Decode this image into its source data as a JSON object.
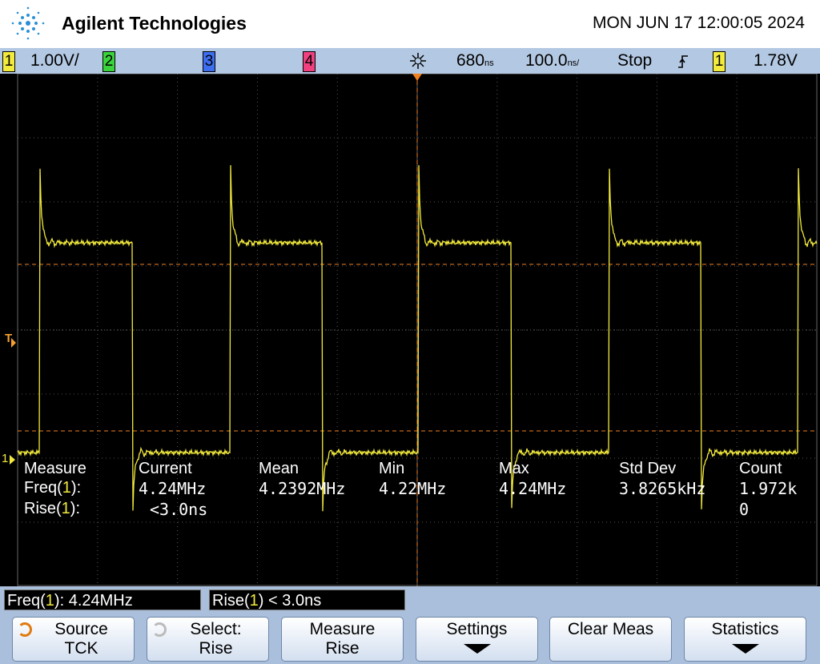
{
  "header": {
    "brand": "Agilent Technologies",
    "datetime": "MON JUN 17 12:00:05 2024"
  },
  "status_bar": {
    "channels": [
      {
        "number": "1",
        "scale": "1.00V/"
      },
      {
        "number": "2"
      },
      {
        "number": "3"
      },
      {
        "number": "4"
      }
    ],
    "delay": {
      "value": "680",
      "unit": "ns"
    },
    "timebase": {
      "value": "100.0",
      "unit": "ns/"
    },
    "run_state": "Stop",
    "trigger_source": "1",
    "trigger_level": "1.78V"
  },
  "screen": {
    "trigger_marker": "T",
    "ground_marker": "1"
  },
  "measurements": {
    "headers": [
      "Measure",
      "Current",
      "Mean",
      "Min",
      "Max",
      "Std Dev",
      "Count"
    ],
    "rows": [
      {
        "label": [
          "Freq(",
          "1",
          "):"
        ],
        "current": "4.24MHz",
        "mean": "4.2392MHz",
        "min": "4.22MHz",
        "max": "4.24MHz",
        "std_dev": "3.8265kHz",
        "count": "1.972k"
      },
      {
        "label": [
          "Rise(",
          "1",
          "):"
        ],
        "current": "<3.0ns",
        "count": "0"
      }
    ]
  },
  "readouts": [
    {
      "label": [
        "Freq(",
        "1",
        "):"
      ],
      "value": "4.24MHz"
    },
    {
      "label": [
        "Rise(",
        "1",
        ")"
      ],
      "value": "< 3.0ns"
    }
  ],
  "softkeys": [
    {
      "title": "Source",
      "value": "TCK"
    },
    {
      "title": "Select:",
      "value": "Rise"
    },
    {
      "title": "Measure",
      "value": "Rise"
    },
    {
      "title": "Settings"
    },
    {
      "title": "Clear Meas"
    },
    {
      "title": "Statistics"
    }
  ]
}
